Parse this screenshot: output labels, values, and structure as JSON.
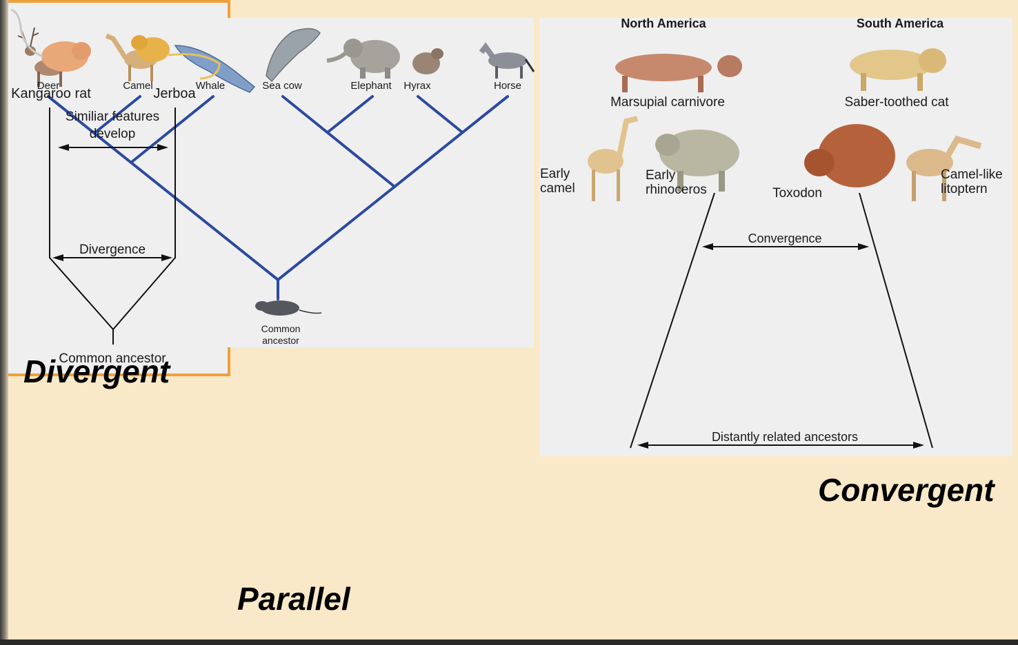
{
  "slide": {
    "labels": {
      "divergent": "Divergent",
      "parallel": "Parallel",
      "convergent": "Convergent"
    },
    "colors": {
      "background": "#f9e9c8",
      "panel": "#efefef",
      "tree_blue": "#2b4aa0",
      "frame_orange": "#f0a03a"
    }
  },
  "divergent": {
    "animals": [
      "Deer",
      "Camel",
      "Whale",
      "Sea cow",
      "Elephant",
      "Hyrax",
      "Horse"
    ],
    "ancestor": [
      "Common",
      "ancestor"
    ]
  },
  "convergent": {
    "regions": {
      "north": "North America",
      "south": "South America"
    },
    "animals": {
      "marsupial": "Marsupial carnivore",
      "saber": "Saber-toothed cat",
      "early_camel": [
        "Early",
        "camel"
      ],
      "early_rhino": [
        "Early",
        "rhinoceros"
      ],
      "toxodon": "Toxodon",
      "litoptern": [
        "Camel-like",
        "litoptern"
      ]
    },
    "convergence": "Convergence",
    "ancestors": "Distantly related ancestors"
  },
  "parallel": {
    "kangaroo_rat": "Kangaroo rat",
    "jerboa": "Jerboa",
    "similar": [
      "Similiar features",
      "develop"
    ],
    "divergence": "Divergence",
    "ancestor": "Common ancestor"
  }
}
